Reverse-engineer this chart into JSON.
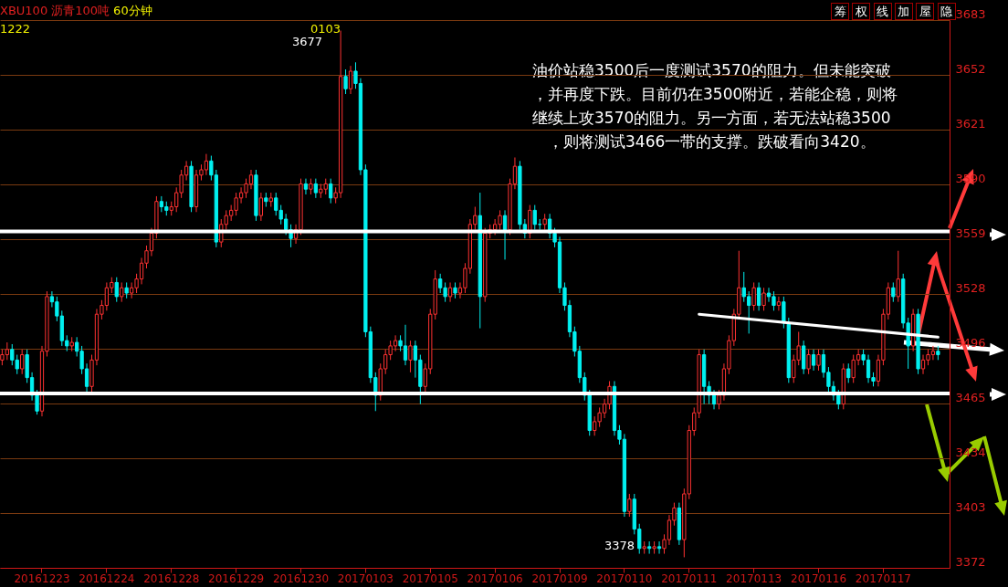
{
  "chart_data": {
    "type": "candlestick",
    "title": "XBU100 沥青100吨",
    "subtitle": "60分钟",
    "categories": [
      null,
      null,
      null,
      null,
      null,
      null,
      null,
      null,
      "20161223",
      null,
      null,
      null,
      null,
      null,
      null,
      null,
      null,
      null,
      null,
      null,
      null,
      "20161224",
      null,
      null,
      null,
      null,
      null,
      null,
      null,
      null,
      null,
      null,
      null,
      null,
      "20161228",
      null,
      null,
      null,
      null,
      null,
      null,
      null,
      null,
      null,
      null,
      null,
      null,
      "20161229",
      null,
      null,
      null,
      null,
      null,
      null,
      null,
      null,
      null,
      null,
      null,
      null,
      "20161230",
      null,
      null,
      null,
      null,
      null,
      null,
      null,
      null,
      null,
      null,
      null,
      null,
      "20170103",
      null,
      null,
      null,
      null,
      null,
      null,
      null,
      null,
      null,
      null,
      null,
      null,
      "20170105",
      null,
      null,
      null,
      null,
      null,
      null,
      null,
      null,
      null,
      null,
      null,
      null,
      "20170106",
      null,
      null,
      null,
      null,
      null,
      null,
      null,
      null,
      null,
      null,
      null,
      null,
      "20170109",
      null,
      null,
      null,
      null,
      null,
      null,
      null,
      null,
      null,
      null,
      null,
      null,
      "20170110",
      null,
      null,
      null,
      null,
      null,
      null,
      null,
      null,
      null,
      null,
      null,
      null,
      "20170111",
      null,
      null,
      null,
      null,
      null,
      null,
      null,
      null,
      null,
      null,
      null,
      null,
      "20170113",
      null,
      null,
      null,
      null,
      null,
      null,
      null,
      null,
      null,
      null,
      null,
      null,
      "20170116",
      null,
      null,
      null,
      null,
      null,
      null,
      null,
      null,
      null,
      null,
      null,
      null,
      "20170117",
      null,
      null,
      null,
      null,
      null,
      null,
      null,
      null,
      null,
      null,
      null
    ],
    "ohlc": [
      [
        3490,
        3496,
        3487,
        3493
      ],
      [
        3493,
        3500,
        3490,
        3496
      ],
      [
        3496,
        3499,
        3487,
        3490
      ],
      [
        3490,
        3493,
        3482,
        3485
      ],
      [
        3485,
        3496,
        3482,
        3493
      ],
      [
        3493,
        3496,
        3477,
        3480
      ],
      [
        3480,
        3483,
        3467,
        3470
      ],
      [
        3470,
        3473,
        3459,
        3461
      ],
      [
        3461,
        3498,
        3458,
        3495
      ],
      [
        3495,
        3529,
        3492,
        3526
      ],
      [
        3526,
        3529,
        3520,
        3523
      ],
      [
        3523,
        3526,
        3512,
        3515
      ],
      [
        3515,
        3518,
        3498,
        3501
      ],
      [
        3501,
        3504,
        3495,
        3498
      ],
      [
        3498,
        3503,
        3495,
        3500
      ],
      [
        3500,
        3503,
        3492,
        3495
      ],
      [
        3495,
        3498,
        3482,
        3485
      ],
      [
        3485,
        3488,
        3472,
        3475
      ],
      [
        3475,
        3493,
        3472,
        3490
      ],
      [
        3490,
        3519,
        3487,
        3516
      ],
      [
        3516,
        3524,
        3513,
        3521
      ],
      [
        3521,
        3534,
        3518,
        3531
      ],
      [
        3531,
        3537,
        3528,
        3534
      ],
      [
        3534,
        3537,
        3523,
        3526
      ],
      [
        3526,
        3534,
        3523,
        3531
      ],
      [
        3531,
        3534,
        3525,
        3528
      ],
      [
        3528,
        3534,
        3525,
        3531
      ],
      [
        3531,
        3539,
        3528,
        3536
      ],
      [
        3536,
        3548,
        3533,
        3545
      ],
      [
        3545,
        3555,
        3542,
        3552
      ],
      [
        3552,
        3565,
        3549,
        3562
      ],
      [
        3562,
        3583,
        3559,
        3580
      ],
      [
        3580,
        3583,
        3574,
        3577
      ],
      [
        3577,
        3580,
        3572,
        3575
      ],
      [
        3575,
        3580,
        3572,
        3577
      ],
      [
        3577,
        3588,
        3574,
        3585
      ],
      [
        3585,
        3598,
        3582,
        3595
      ],
      [
        3595,
        3603,
        3592,
        3600
      ],
      [
        3600,
        3603,
        3574,
        3577
      ],
      [
        3577,
        3598,
        3574,
        3595
      ],
      [
        3595,
        3601,
        3592,
        3598
      ],
      [
        3598,
        3607,
        3595,
        3603
      ],
      [
        3603,
        3606,
        3592,
        3595
      ],
      [
        3595,
        3598,
        3554,
        3557
      ],
      [
        3557,
        3570,
        3554,
        3567
      ],
      [
        3567,
        3575,
        3564,
        3572
      ],
      [
        3572,
        3578,
        3569,
        3575
      ],
      [
        3575,
        3585,
        3572,
        3582
      ],
      [
        3582,
        3588,
        3579,
        3585
      ],
      [
        3585,
        3593,
        3582,
        3590
      ],
      [
        3590,
        3598,
        3587,
        3595
      ],
      [
        3595,
        3598,
        3569,
        3572
      ],
      [
        3572,
        3585,
        3569,
        3582
      ],
      [
        3582,
        3585,
        3577,
        3580
      ],
      [
        3580,
        3585,
        3577,
        3582
      ],
      [
        3582,
        3585,
        3572,
        3575
      ],
      [
        3575,
        3578,
        3567,
        3570
      ],
      [
        3570,
        3573,
        3561,
        3564
      ],
      [
        3564,
        3567,
        3554,
        3559
      ],
      [
        3559,
        3567,
        3556,
        3564
      ],
      [
        3564,
        3593,
        3561,
        3590
      ],
      [
        3590,
        3593,
        3584,
        3587
      ],
      [
        3587,
        3593,
        3584,
        3590
      ],
      [
        3590,
        3593,
        3582,
        3585
      ],
      [
        3585,
        3590,
        3582,
        3587
      ],
      [
        3587,
        3593,
        3584,
        3590
      ],
      [
        3590,
        3593,
        3579,
        3582
      ],
      [
        3582,
        3588,
        3579,
        3585
      ],
      [
        3585,
        3677,
        3582,
        3651
      ],
      [
        3651,
        3655,
        3641,
        3644
      ],
      [
        3644,
        3657,
        3641,
        3654
      ],
      [
        3654,
        3659,
        3644,
        3647
      ],
      [
        3647,
        3650,
        3595,
        3598
      ],
      [
        3598,
        3601,
        3503,
        3506
      ],
      [
        3506,
        3509,
        3477,
        3480
      ],
      [
        3480,
        3483,
        3461,
        3470
      ],
      [
        3470,
        3488,
        3467,
        3485
      ],
      [
        3485,
        3496,
        3482,
        3493
      ],
      [
        3493,
        3501,
        3490,
        3498
      ],
      [
        3498,
        3504,
        3495,
        3501
      ],
      [
        3501,
        3504,
        3495,
        3498
      ],
      [
        3498,
        3510,
        3487,
        3490
      ],
      [
        3490,
        3501,
        3483,
        3498
      ],
      [
        3498,
        3501,
        3480,
        3490
      ],
      [
        3490,
        3493,
        3465,
        3475
      ],
      [
        3475,
        3488,
        3472,
        3485
      ],
      [
        3485,
        3519,
        3482,
        3516
      ],
      [
        3516,
        3541,
        3513,
        3536
      ],
      [
        3536,
        3539,
        3528,
        3531
      ],
      [
        3531,
        3534,
        3523,
        3526
      ],
      [
        3526,
        3534,
        3523,
        3531
      ],
      [
        3531,
        3534,
        3525,
        3528
      ],
      [
        3528,
        3534,
        3525,
        3531
      ],
      [
        3531,
        3545,
        3528,
        3542
      ],
      [
        3542,
        3570,
        3539,
        3567
      ],
      [
        3567,
        3577,
        3564,
        3572
      ],
      [
        3572,
        3585,
        3508,
        3526
      ],
      [
        3526,
        3565,
        3523,
        3562
      ],
      [
        3562,
        3567,
        3559,
        3564
      ],
      [
        3564,
        3570,
        3561,
        3567
      ],
      [
        3567,
        3575,
        3564,
        3572
      ],
      [
        3572,
        3575,
        3547,
        3564
      ],
      [
        3564,
        3593,
        3561,
        3590
      ],
      [
        3590,
        3605,
        3587,
        3600
      ],
      [
        3600,
        3603,
        3564,
        3567
      ],
      [
        3567,
        3570,
        3559,
        3562
      ],
      [
        3562,
        3578,
        3559,
        3575
      ],
      [
        3575,
        3578,
        3564,
        3567
      ],
      [
        3567,
        3570,
        3564,
        3567
      ],
      [
        3567,
        3573,
        3564,
        3570
      ],
      [
        3570,
        3573,
        3559,
        3562
      ],
      [
        3562,
        3565,
        3554,
        3557
      ],
      [
        3557,
        3560,
        3528,
        3531
      ],
      [
        3531,
        3534,
        3518,
        3521
      ],
      [
        3521,
        3524,
        3503,
        3506
      ],
      [
        3506,
        3509,
        3492,
        3495
      ],
      [
        3495,
        3498,
        3477,
        3480
      ],
      [
        3480,
        3483,
        3467,
        3470
      ],
      [
        3470,
        3473,
        3447,
        3450
      ],
      [
        3450,
        3458,
        3447,
        3455
      ],
      [
        3455,
        3463,
        3452,
        3460
      ],
      [
        3460,
        3468,
        3457,
        3465
      ],
      [
        3465,
        3478,
        3462,
        3475
      ],
      [
        3475,
        3478,
        3447,
        3450
      ],
      [
        3450,
        3453,
        3442,
        3445
      ],
      [
        3445,
        3448,
        3401,
        3404
      ],
      [
        3404,
        3414,
        3401,
        3411
      ],
      [
        3411,
        3414,
        3391,
        3394
      ],
      [
        3394,
        3397,
        3380,
        3383
      ],
      [
        3383,
        3387,
        3380,
        3384
      ],
      [
        3384,
        3387,
        3380,
        3383
      ],
      [
        3383,
        3387,
        3380,
        3384
      ],
      [
        3384,
        3387,
        3380,
        3383
      ],
      [
        3383,
        3391,
        3380,
        3388
      ],
      [
        3388,
        3402,
        3385,
        3399
      ],
      [
        3399,
        3409,
        3396,
        3406
      ],
      [
        3406,
        3409,
        3385,
        3388
      ],
      [
        3388,
        3417,
        3378,
        3414
      ],
      [
        3414,
        3453,
        3411,
        3450
      ],
      [
        3450,
        3463,
        3447,
        3460
      ],
      [
        3460,
        3496,
        3457,
        3493
      ],
      [
        3493,
        3496,
        3465,
        3475
      ],
      [
        3475,
        3478,
        3465,
        3470
      ],
      [
        3470,
        3473,
        3462,
        3465
      ],
      [
        3465,
        3473,
        3462,
        3470
      ],
      [
        3470,
        3488,
        3467,
        3485
      ],
      [
        3485,
        3504,
        3482,
        3501
      ],
      [
        3501,
        3519,
        3498,
        3516
      ],
      [
        3516,
        3552,
        3513,
        3531
      ],
      [
        3531,
        3540,
        3523,
        3526
      ],
      [
        3526,
        3529,
        3505,
        3521
      ],
      [
        3521,
        3534,
        3518,
        3531
      ],
      [
        3531,
        3534,
        3518,
        3521
      ],
      [
        3521,
        3531,
        3518,
        3528
      ],
      [
        3528,
        3531,
        3523,
        3526
      ],
      [
        3526,
        3529,
        3518,
        3521
      ],
      [
        3521,
        3526,
        3518,
        3523
      ],
      [
        3523,
        3526,
        3508,
        3511
      ],
      [
        3511,
        3514,
        3477,
        3480
      ],
      [
        3480,
        3493,
        3477,
        3490
      ],
      [
        3490,
        3506,
        3487,
        3498
      ],
      [
        3498,
        3501,
        3482,
        3485
      ],
      [
        3485,
        3496,
        3482,
        3493
      ],
      [
        3493,
        3496,
        3484,
        3487
      ],
      [
        3487,
        3496,
        3484,
        3493
      ],
      [
        3493,
        3496,
        3480,
        3483
      ],
      [
        3483,
        3486,
        3472,
        3475
      ],
      [
        3475,
        3478,
        3467,
        3470
      ],
      [
        3470,
        3473,
        3462,
        3465
      ],
      [
        3465,
        3488,
        3462,
        3485
      ],
      [
        3485,
        3488,
        3477,
        3480
      ],
      [
        3480,
        3493,
        3477,
        3490
      ],
      [
        3490,
        3496,
        3487,
        3493
      ],
      [
        3493,
        3496,
        3487,
        3490
      ],
      [
        3490,
        3493,
        3477,
        3480
      ],
      [
        3480,
        3483,
        3475,
        3478
      ],
      [
        3478,
        3493,
        3475,
        3490
      ],
      [
        3490,
        3519,
        3487,
        3516
      ],
      [
        3516,
        3534,
        3513,
        3531
      ],
      [
        3531,
        3534,
        3523,
        3526
      ],
      [
        3526,
        3552,
        3523,
        3536
      ],
      [
        3536,
        3539,
        3508,
        3511
      ],
      [
        3511,
        3514,
        3485,
        3498
      ],
      [
        3498,
        3519,
        3495,
        3516
      ],
      [
        3516,
        3519,
        3482,
        3485
      ],
      [
        3485,
        3493,
        3482,
        3490
      ],
      [
        3490,
        3496,
        3487,
        3493
      ],
      [
        3493,
        3498,
        3490,
        3495
      ],
      [
        3495,
        3498,
        3490,
        3493
      ]
    ],
    "colors": [
      "#ff3232",
      "#ff3232",
      "#00f0f0",
      "#00f0f0",
      "#ff3232",
      "#00f0f0",
      "#00f0f0",
      "#00f0f0",
      "#ff3232",
      "#ff3232",
      "#00f0f0",
      "#00f0f0",
      "#00f0f0",
      "#00f0f0",
      "#ff3232",
      "#00f0f0",
      "#00f0f0",
      "#00f0f0",
      "#ff3232",
      "#ff3232",
      "#ff3232",
      "#ff3232",
      "#ff3232",
      "#00f0f0",
      "#ff3232",
      "#00f0f0",
      "#ff3232",
      "#ff3232",
      "#ff3232",
      "#ff3232",
      "#ff3232",
      "#ff3232",
      "#00f0f0",
      "#00f0f0",
      "#ff3232",
      "#ff3232",
      "#ff3232",
      "#ff3232",
      "#00f0f0",
      "#ff3232",
      "#ff3232",
      "#ff3232",
      "#00f0f0",
      "#00f0f0",
      "#ff3232",
      "#ff3232",
      "#ff3232",
      "#ff3232",
      "#ff3232",
      "#ff3232",
      "#ff3232",
      "#00f0f0",
      "#ff3232",
      "#00f0f0",
      "#ff3232",
      "#00f0f0",
      "#00f0f0",
      "#00f0f0",
      "#00f0f0",
      "#ff3232",
      "#ff3232",
      "#00f0f0",
      "#ff3232",
      "#00f0f0",
      "#ff3232",
      "#ff3232",
      "#00f0f0",
      "#ff3232",
      "#ff3232",
      "#00f0f0",
      "#ff3232",
      "#00f0f0",
      "#00f0f0",
      "#00f0f0",
      "#00f0f0",
      "#00f0f0",
      "#ff3232",
      "#ff3232",
      "#ff3232",
      "#ff3232",
      "#00f0f0",
      "#00f0f0",
      "#ff3232",
      "#00f0f0",
      "#00f0f0",
      "#ff3232",
      "#ff3232",
      "#ff3232",
      "#00f0f0",
      "#00f0f0",
      "#ff3232",
      "#00f0f0",
      "#ff3232",
      "#ff3232",
      "#ff3232",
      "#ff3232",
      "#00f0f0",
      "#ff3232",
      "#ff3232",
      "#ff3232",
      "#ff3232",
      "#00f0f0",
      "#ff3232",
      "#ff3232",
      "#00f0f0",
      "#00f0f0",
      "#ff3232",
      "#00f0f0",
      "#00f0f0",
      "#ff3232",
      "#00f0f0",
      "#00f0f0",
      "#00f0f0",
      "#00f0f0",
      "#00f0f0",
      "#00f0f0",
      "#00f0f0",
      "#00f0f0",
      "#00f0f0",
      "#ff3232",
      "#ff3232",
      "#ff3232",
      "#ff3232",
      "#00f0f0",
      "#00f0f0",
      "#00f0f0",
      "#ff3232",
      "#00f0f0",
      "#00f0f0",
      "#ff3232",
      "#00f0f0",
      "#ff3232",
      "#00f0f0",
      "#ff3232",
      "#ff3232",
      "#ff3232",
      "#00f0f0",
      "#ff3232",
      "#ff3232",
      "#ff3232",
      "#ff3232",
      "#00f0f0",
      "#00f0f0",
      "#00f0f0",
      "#ff3232",
      "#ff3232",
      "#ff3232",
      "#ff3232",
      "#ff3232",
      "#00f0f0",
      "#00f0f0",
      "#ff3232",
      "#00f0f0",
      "#ff3232",
      "#00f0f0",
      "#00f0f0",
      "#ff3232",
      "#00f0f0",
      "#00f0f0",
      "#ff3232",
      "#ff3232",
      "#00f0f0",
      "#ff3232",
      "#00f0f0",
      "#ff3232",
      "#00f0f0",
      "#00f0f0",
      "#00f0f0",
      "#00f0f0",
      "#ff3232",
      "#00f0f0",
      "#ff3232",
      "#ff3232",
      "#00f0f0",
      "#00f0f0",
      "#00f0f0",
      "#ff3232",
      "#ff3232",
      "#ff3232",
      "#00f0f0",
      "#ff3232",
      "#00f0f0",
      "#00f0f0",
      "#ff3232",
      "#00f0f0",
      "#ff3232",
      "#ff3232",
      "#ff3232",
      "#00f0f0"
    ],
    "series": [
      {
        "type": "line",
        "color": "#ffffff",
        "values": [
          null,
          null,
          null,
          null,
          null,
          null,
          null,
          null,
          null,
          null,
          null,
          null,
          null,
          null,
          null,
          null,
          null,
          null,
          null,
          null,
          null,
          null,
          null,
          null,
          null,
          null,
          null,
          null,
          null,
          null,
          null,
          null,
          null,
          null,
          null,
          null,
          null,
          null,
          null,
          null,
          null,
          null,
          null,
          null,
          null,
          null,
          null,
          null,
          null,
          null,
          null,
          null,
          null,
          null,
          null,
          null,
          null,
          null,
          null,
          null,
          null,
          null,
          null,
          null,
          null,
          null,
          null,
          null,
          null,
          null,
          null,
          null,
          null,
          null,
          null,
          null,
          null,
          null,
          null,
          null,
          null,
          null,
          null,
          null,
          null,
          null,
          null,
          null,
          null,
          null,
          null,
          null,
          null,
          null,
          null,
          null,
          null,
          null,
          null,
          null,
          null,
          null,
          null,
          null,
          null,
          null,
          null,
          null,
          null,
          null,
          null,
          null,
          null,
          null,
          null,
          null,
          null,
          null,
          null,
          null,
          null,
          null,
          null,
          null,
          null,
          null,
          null,
          null,
          null,
          null,
          null,
          null,
          null,
          null,
          null,
          null,
          null,
          null,
          null,
          null,
          3516,
          null,
          null,
          null,
          null,
          null,
          null,
          null,
          null,
          null,
          null,
          null,
          null,
          null,
          null,
          null,
          null,
          null,
          null,
          null,
          null,
          null,
          null,
          null,
          null,
          null,
          null,
          null,
          null,
          null,
          null,
          null,
          null,
          null,
          null,
          null,
          null,
          null,
          null,
          null,
          null,
          null,
          null,
          null,
          null,
          null,
          null,
          null,
          3503
        ]
      }
    ],
    "ylim": [
      3372,
      3683
    ],
    "yticks": [
      3372,
      {
        "value": 3403.1,
        "label": "3403"
      },
      {
        "value": 3434.2,
        "label": "3434"
      },
      {
        "value": 3465.3,
        "label": "3465"
      },
      {
        "value": 3496.4,
        "label": "3496"
      },
      {
        "value": 3527.5,
        "label": "3528"
      },
      {
        "value": 3558.6,
        "label": "3559"
      },
      {
        "value": 3589.7,
        "label": "3590"
      },
      {
        "value": 3620.8,
        "label": "3621"
      },
      {
        "value": 3651.9,
        "label": "3652"
      },
      3683
    ],
    "grid": "y",
    "ref_lines": [
      {
        "axis": "y",
        "value": 3563,
        "color": "#ffffff"
      },
      {
        "axis": "y",
        "value": 3471,
        "color": "#ffffff"
      }
    ],
    "annotations": [
      "1222",
      "0103",
      "油价站稳3500后一度测试3570的阻力。但未能突破",
      "，并再度下跌。目前仍在3500附近，若能企稳，则将",
      "继续上攻3570的阻力。另一方面，若无法站稳3500",
      "，则将测试3466一带的支撑。跌破看向3420。",
      "筹",
      "权",
      "线",
      "加",
      "屋",
      "隐",
      "3677",
      "3378"
    ]
  }
}
